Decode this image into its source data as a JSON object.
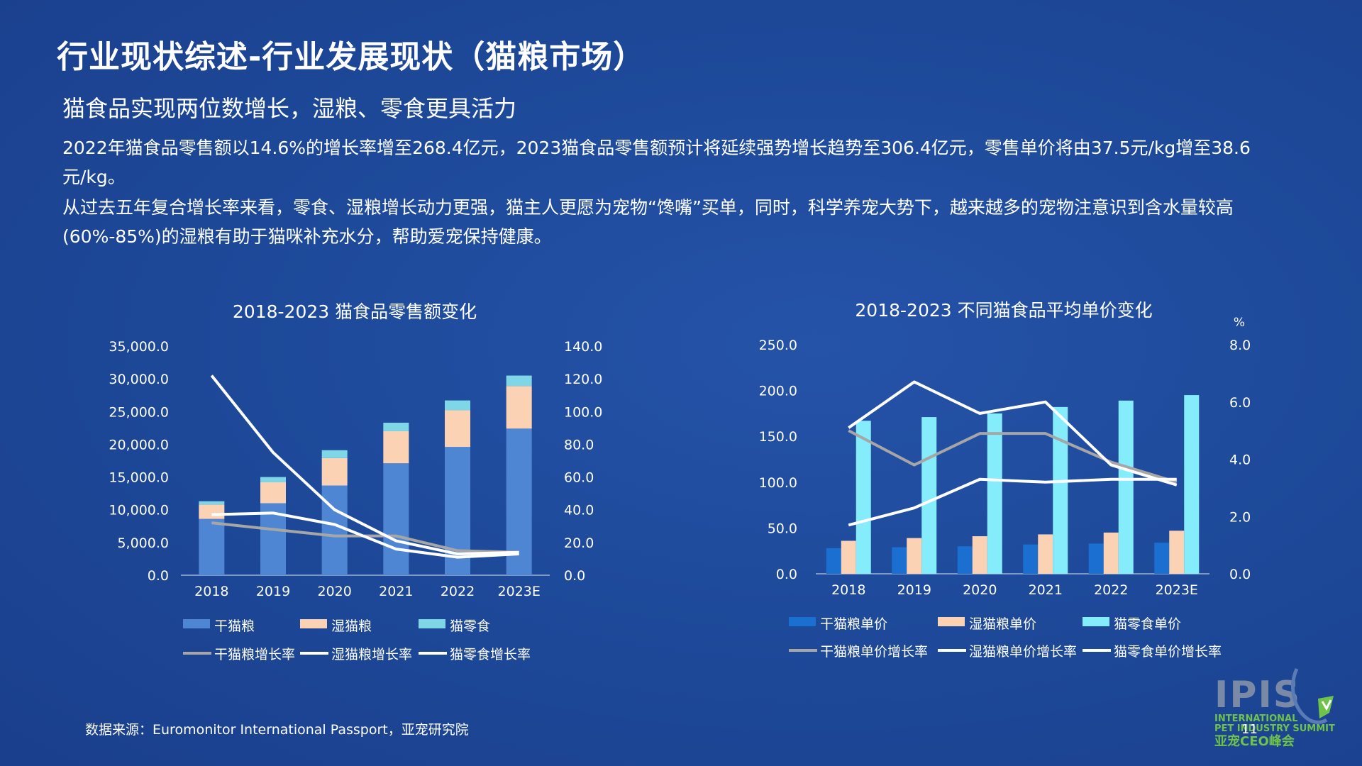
{
  "page": {
    "title": "行业现状综述-行业发展现状（猫粮市场）",
    "subtitle": "猫食品实现两位数增长，湿粮、零食更具活力",
    "para1": "2022年猫食品零售额以14.6%的增长率增至268.4亿元，2023猫食品零售额预计将延续强势增长趋势至306.4亿元，零售单价将由37.5元/kg增至38.6元/kg。",
    "para2": "从过去五年复合增长率来看，零食、湿粮增长动力更强，猫主人更愿为宠物“馋嘴”买单，同时，科学养宠大势下，越来越多的宠物注意识到含水量较高(60%-85%)的湿粮有助于猫咪补充水分，帮助爱宠保持健康。",
    "source": "数据来源：Euromonitor International Passport，亚宠研究院",
    "page_number": "11",
    "logo": {
      "main": "IPIS",
      "line1": "INTERNATIONAL",
      "line2": "PET INDUSTRY SUMMIT",
      "cn": "亚宠CEO峰会"
    }
  },
  "chart_data": [
    {
      "type": "bar",
      "stacked": true,
      "title": "2018-2023 猫食品零售额变化",
      "categories": [
        "2018",
        "2019",
        "2020",
        "2021",
        "2022",
        "2023E"
      ],
      "ylim": [
        0,
        35000
      ],
      "y_ticks": [
        "35,000.0",
        "30,000.0",
        "25,000.0",
        "20,000.0",
        "15,000.0",
        "10,000.0",
        "5,000.0",
        "0.0"
      ],
      "y2lim": [
        0,
        140
      ],
      "y2_ticks": [
        "140.0",
        "120.0",
        "100.0",
        "80.0",
        "60.0",
        "40.0",
        "20.0",
        "0.0"
      ],
      "series": [
        {
          "name": "干猫粮",
          "kind": "bar",
          "color": "#4f86d4",
          "values": [
            8600,
            11000,
            13700,
            17100,
            19600,
            22400
          ]
        },
        {
          "name": "湿猫粮",
          "kind": "bar",
          "color": "#fbd3b4",
          "values": [
            2200,
            3200,
            4200,
            4900,
            5600,
            6500
          ]
        },
        {
          "name": "猫零食",
          "kind": "bar",
          "color": "#7fd6e6",
          "values": [
            500,
            800,
            1200,
            1300,
            1500,
            1600
          ]
        },
        {
          "name": "干猫粮增长率",
          "kind": "line",
          "axis": "right",
          "color": "#a6a6a6",
          "values": [
            32,
            28,
            24,
            24,
            15,
            14
          ]
        },
        {
          "name": "湿猫粮增长率",
          "kind": "line",
          "axis": "right",
          "color": "#ffffff",
          "values": [
            122,
            75,
            40,
            21,
            13,
            14
          ]
        },
        {
          "name": "猫零食增长率",
          "kind": "line",
          "axis": "right",
          "color": "#ffffff",
          "values": [
            37,
            38,
            31,
            16,
            11,
            13
          ]
        }
      ],
      "legend_rows": [
        [
          "干猫粮",
          "湿猫粮",
          "猫零食"
        ],
        [
          "干猫粮增长率",
          "湿猫粮增长率",
          "猫零食增长率"
        ]
      ],
      "legend": "bottom"
    },
    {
      "type": "bar",
      "title": "2018-2023 不同猫食品平均单价变化",
      "categories": [
        "2018",
        "2019",
        "2020",
        "2021",
        "2022",
        "2023E"
      ],
      "ylim": [
        0,
        250
      ],
      "y_ticks": [
        "250.0",
        "200.0",
        "150.0",
        "100.0",
        "50.0",
        "0.0"
      ],
      "y2lim": [
        0,
        8
      ],
      "y2_ticks": [
        "8.0",
        "6.0",
        "4.0",
        "2.0",
        "0.0"
      ],
      "y2_unit": "%",
      "series": [
        {
          "name": "干猫粮单价",
          "kind": "bar",
          "color": "#1a6fd0",
          "values": [
            28,
            29,
            30,
            32,
            33,
            34
          ]
        },
        {
          "name": "湿猫粮单价",
          "kind": "bar",
          "color": "#fbd3b4",
          "values": [
            36,
            39,
            41,
            43,
            45,
            47
          ]
        },
        {
          "name": "猫零食单价",
          "kind": "bar",
          "color": "#85ecfb",
          "values": [
            167,
            171,
            175,
            182,
            189,
            195
          ]
        },
        {
          "name": "干猫粮单价增长率",
          "kind": "line",
          "axis": "right",
          "color": "#a6a6a6",
          "values": [
            5.0,
            3.8,
            4.9,
            4.9,
            3.9,
            3.2
          ]
        },
        {
          "name": "湿猫粮单价增长率",
          "kind": "line",
          "axis": "right",
          "color": "#ffffff",
          "values": [
            5.1,
            6.7,
            5.6,
            6.0,
            3.8,
            3.1
          ]
        },
        {
          "name": "猫零食单价增长率",
          "kind": "line",
          "axis": "right",
          "color": "#ffffff",
          "values": [
            1.7,
            2.3,
            3.3,
            3.2,
            3.3,
            3.3
          ]
        }
      ],
      "legend_rows": [
        [
          "干猫粮单价",
          "湿猫粮单价",
          "猫零食单价"
        ],
        [
          "干猫粮单价增长率",
          "湿猫粮单价增长率",
          "猫零食单价增长率"
        ]
      ],
      "legend": "bottom"
    }
  ]
}
